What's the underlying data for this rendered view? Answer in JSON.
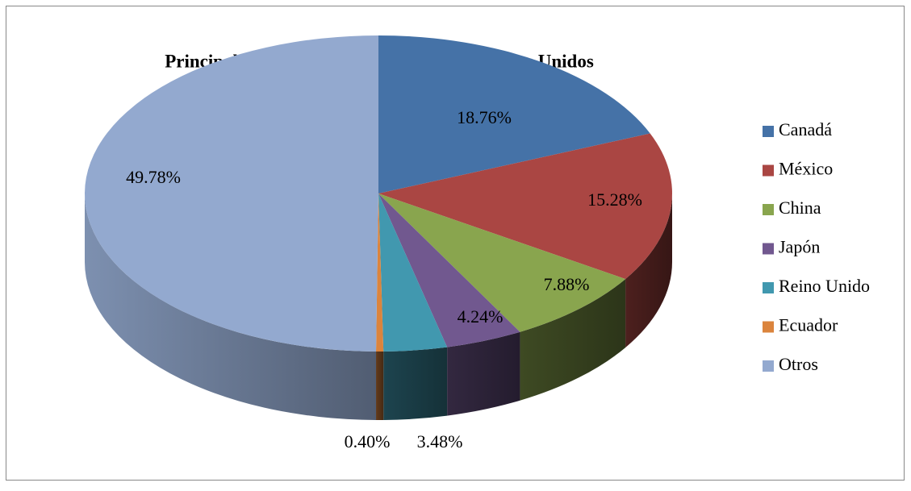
{
  "chart_data": {
    "type": "pie3d",
    "title": "Principales destinos de exportación de Estados Unidos",
    "categories": [
      "Canadá",
      "México",
      "China",
      "Japón",
      "Reino Unido",
      "Ecuador",
      "Otros"
    ],
    "values": [
      18.76,
      15.28,
      7.88,
      4.24,
      3.48,
      0.4,
      49.78
    ],
    "value_labels": [
      "18.76%",
      "15.28%",
      "7.88%",
      "4.24%",
      "3.48%",
      "0.40%",
      "49.78%"
    ],
    "colors": [
      "#4572a7",
      "#aa4643",
      "#89a54e",
      "#71588f",
      "#4198af",
      "#db843d",
      "#93a9cf"
    ],
    "legend": "right"
  }
}
